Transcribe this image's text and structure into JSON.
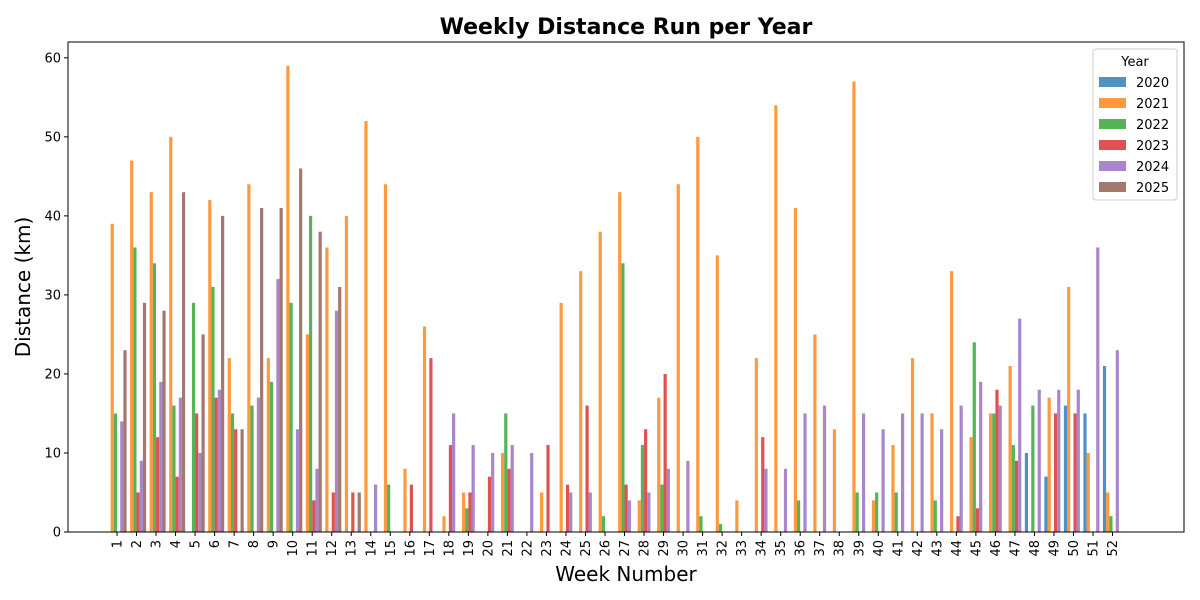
{
  "chart_data": {
    "type": "bar",
    "title": "Weekly Distance Run per Year",
    "xlabel": "Week Number",
    "ylabel": "Distance (km)",
    "ylim": [
      0,
      62
    ],
    "yticks": [
      0,
      10,
      20,
      30,
      40,
      50,
      60
    ],
    "grid": false,
    "legend": {
      "title": "Year",
      "placement": "top-right"
    },
    "categories": [
      "1",
      "2",
      "3",
      "4",
      "5",
      "6",
      "7",
      "8",
      "9",
      "10",
      "11",
      "12",
      "13",
      "14",
      "15",
      "16",
      "17",
      "18",
      "19",
      "20",
      "21",
      "22",
      "23",
      "24",
      "25",
      "26",
      "27",
      "28",
      "29",
      "30",
      "31",
      "32",
      "33",
      "34",
      "35",
      "36",
      "37",
      "38",
      "39",
      "40",
      "41",
      "42",
      "43",
      "44",
      "45",
      "46",
      "47",
      "48",
      "49",
      "50",
      "51",
      "52"
    ],
    "series": [
      {
        "name": "2020",
        "color": "#1f77b4",
        "values": [
          0,
          0,
          0,
          0,
          0,
          0,
          0,
          0,
          0,
          0,
          0,
          0,
          0,
          0,
          0,
          0,
          0,
          0,
          0,
          0,
          0,
          0,
          0,
          0,
          0,
          0,
          0,
          0,
          0,
          0,
          0,
          0,
          0,
          0,
          0,
          0,
          0,
          0,
          0,
          0,
          0,
          0,
          0,
          0,
          0,
          0,
          0,
          10,
          7,
          16,
          15,
          21
        ]
      },
      {
        "name": "2021",
        "color": "#ff7f0e",
        "values": [
          39,
          47,
          43,
          50,
          0,
          42,
          22,
          44,
          22,
          59,
          25,
          36,
          40,
          52,
          44,
          8,
          26,
          2,
          5,
          0,
          10,
          0,
          5,
          29,
          33,
          38,
          43,
          4,
          17,
          44,
          50,
          35,
          4,
          22,
          54,
          41,
          25,
          13,
          57,
          4,
          11,
          22,
          15,
          33,
          12,
          15,
          21,
          0,
          17,
          31,
          10,
          5
        ]
      },
      {
        "name": "2022",
        "color": "#2ca02c",
        "values": [
          15,
          36,
          34,
          16,
          29,
          31,
          15,
          16,
          19,
          29,
          40,
          0,
          0,
          0,
          6,
          0,
          0,
          0,
          3,
          0,
          15,
          0,
          0,
          0,
          0,
          2,
          34,
          11,
          6,
          0,
          2,
          1,
          0,
          0,
          0,
          4,
          0,
          0,
          5,
          5,
          5,
          0,
          4,
          0,
          24,
          15,
          11,
          16,
          0,
          0,
          0,
          2
        ]
      },
      {
        "name": "2023",
        "color": "#d62728",
        "values": [
          0,
          5,
          12,
          7,
          15,
          17,
          13,
          0,
          0,
          0,
          4,
          5,
          5,
          0,
          0,
          6,
          22,
          11,
          5,
          7,
          8,
          0,
          11,
          6,
          16,
          0,
          6,
          13,
          20,
          0,
          0,
          0,
          0,
          12,
          0,
          0,
          0,
          0,
          0,
          0,
          0,
          0,
          0,
          2,
          3,
          18,
          9,
          0,
          15,
          15,
          0,
          0
        ]
      },
      {
        "name": "2024",
        "color": "#9467bd",
        "values": [
          14,
          9,
          19,
          17,
          10,
          18,
          0,
          17,
          32,
          13,
          8,
          28,
          0,
          6,
          0,
          0,
          0,
          15,
          11,
          10,
          11,
          10,
          0,
          5,
          5,
          0,
          4,
          5,
          8,
          9,
          0,
          0,
          0,
          8,
          8,
          15,
          16,
          0,
          15,
          13,
          15,
          15,
          13,
          16,
          19,
          16,
          27,
          18,
          18,
          18,
          36,
          23
        ]
      },
      {
        "name": "2025",
        "color": "#8c564b",
        "values": [
          23,
          29,
          28,
          43,
          25,
          40,
          13,
          41,
          41,
          46,
          38,
          31,
          5,
          0,
          0,
          0,
          0,
          0,
          0,
          0,
          0,
          0,
          0,
          0,
          0,
          0,
          0,
          0,
          0,
          0,
          0,
          0,
          0,
          0,
          0,
          0,
          0,
          0,
          0,
          0,
          0,
          0,
          0,
          0,
          0,
          0,
          0,
          0,
          0,
          0,
          0,
          0
        ]
      }
    ]
  }
}
